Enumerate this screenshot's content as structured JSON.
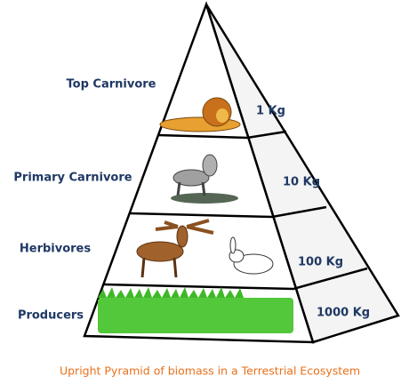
{
  "levels": [
    {
      "label": "Top Carnivore",
      "mass": "1 Kg"
    },
    {
      "label": "Primary Carnivore",
      "mass": "10 Kg"
    },
    {
      "label": "Herbivores",
      "mass": "100 Kg"
    },
    {
      "label": "Producers",
      "mass": "1000 Kg"
    }
  ],
  "caption": "Upright Pyramid of biomass in a Terrestrial Ecosystem"
}
